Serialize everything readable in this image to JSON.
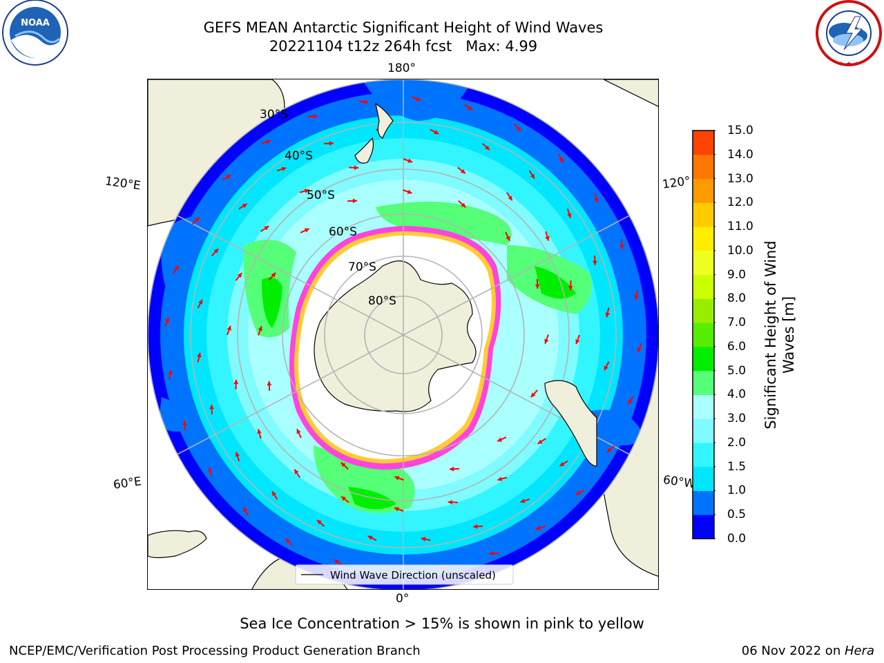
{
  "title": {
    "line1": "GEFS MEAN Antarctic Significant Height of Wind Waves",
    "line2": "20221104 t12z 264h fcst   Max: 4.99"
  },
  "logos": {
    "noaa": {
      "text": "NOAA",
      "ring_text": "NATIONAL OCEANIC AND ATMOSPHERIC ADMINISTRATION · U.S. DEPARTMENT OF COMMERCE"
    },
    "nws": {
      "ring_text": "NATIONAL WEATHER SERVICE"
    }
  },
  "map": {
    "projection": "south-polar-stereographic",
    "longitude_labels": {
      "top": "180°",
      "bottom": "0°",
      "upper_left": "120°E",
      "upper_right": "120°W",
      "lower_left": "60°E",
      "lower_right": "60°W"
    },
    "latitude_labels": [
      "30°S",
      "40°S",
      "50°S",
      "60°S",
      "70°S",
      "80°S"
    ],
    "legend": "Wind Wave Direction (unscaled)",
    "colors": {
      "land": "#efefdb",
      "ice_edge_pink": "#ff44dd",
      "ice_edge_yellow": "#ffcc33",
      "arrow": "#ff0000"
    }
  },
  "colorbar": {
    "label": "Significant Height of Wind Waves [m]",
    "label_line1": "Significant Height of Wind",
    "label_line2": "Waves [m]",
    "ticks": [
      "0.0",
      "0.5",
      "1.0",
      "1.5",
      "2.0",
      "3.0",
      "4.0",
      "5.0",
      "6.0",
      "7.0",
      "8.0",
      "9.0",
      "10.0",
      "11.0",
      "12.0",
      "13.0",
      "14.0",
      "15.0"
    ],
    "colors": [
      "#0000ff",
      "#0073ff",
      "#00e6ff",
      "#33f5ff",
      "#80fbff",
      "#aaffff",
      "#55ff77",
      "#00ee00",
      "#55ee00",
      "#99ee00",
      "#ccff00",
      "#eeff22",
      "#ffee00",
      "#ffcc00",
      "#ff9900",
      "#ff7700",
      "#ff4400",
      "#ff0000"
    ]
  },
  "footer": {
    "caption": "Sea Ice Concentration > 15% is shown in pink to yellow",
    "left": "NCEP/EMC/Verification Post Processing Product Generation Branch",
    "right_date": "06 Nov 2022 on ",
    "right_machine": "Hera"
  }
}
